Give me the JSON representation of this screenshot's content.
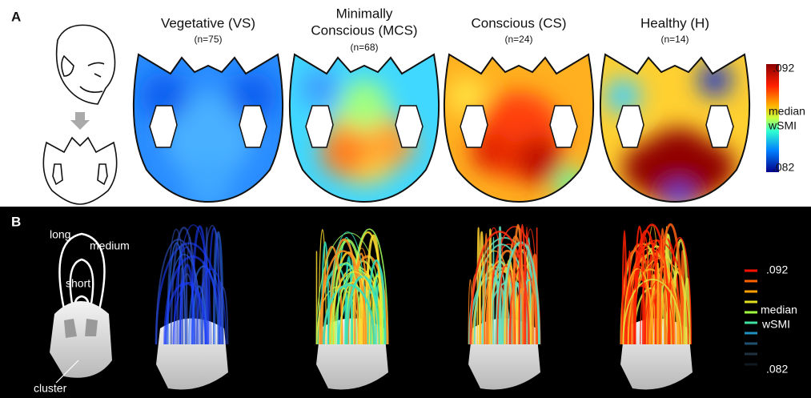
{
  "panel_a": {
    "label": "A",
    "groups": [
      {
        "title": [
          "Vegetative (VS)"
        ],
        "n": "(n=75)"
      },
      {
        "title": [
          "Minimally",
          "Conscious (MCS)"
        ],
        "n": "(n=68)"
      },
      {
        "title": [
          "Conscious (CS)"
        ],
        "n": "(n=24)"
      },
      {
        "title": [
          "Healthy (H)"
        ],
        "n": "(n=14)"
      }
    ],
    "colorbar": {
      "max": ".092",
      "label": [
        "median",
        "wSMI"
      ],
      "min": ".082"
    }
  },
  "panel_b": {
    "label": "B",
    "schematic": {
      "long": "long",
      "medium": "medium",
      "short": "short",
      "cluster": "cluster"
    },
    "colorbar": {
      "max": ".092",
      "label": [
        "median",
        "wSMI"
      ],
      "min": ".082"
    }
  }
}
